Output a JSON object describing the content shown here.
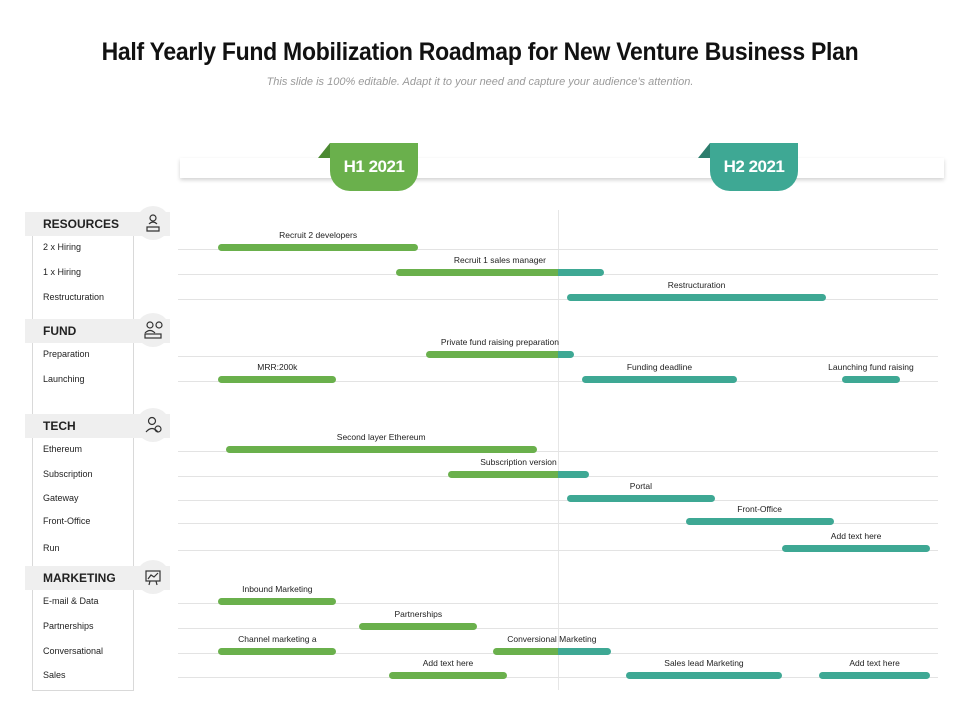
{
  "title": "Half Yearly Fund Mobilization Roadmap for New Venture Business Plan",
  "subtitle": "This slide is 100% editable. Adapt it to your need and capture your audience’s attention.",
  "periods": [
    {
      "label": "H1 2021",
      "color": "#6ab04c"
    },
    {
      "label": "H2 2021",
      "color": "#3ea894"
    }
  ],
  "colors": {
    "h1": "#6ab04c",
    "h2": "#3ea894"
  },
  "sections": [
    {
      "name": "RESOURCES",
      "icon": "presenter-icon",
      "rows": [
        "2 x Hiring",
        "1 x Hiring",
        "Restructuration"
      ]
    },
    {
      "name": "FUND",
      "icon": "investor-icon",
      "rows": [
        "Preparation",
        "Launching"
      ]
    },
    {
      "name": "TECH",
      "icon": "tech-user-icon",
      "rows": [
        "Ethereum",
        "Subscription",
        "Gateway",
        "Front-Office",
        "Run"
      ]
    },
    {
      "name": "MARKETING",
      "icon": "marketing-board-icon",
      "rows": [
        "E-mail & Data",
        "Partnerships",
        "Conversational",
        "Sales"
      ]
    }
  ],
  "tasks": [
    {
      "label": "Recruit 2 developers",
      "row": "2 x Hiring",
      "start": 0.03,
      "end": 0.31
    },
    {
      "label": "Recruit 1 sales manager",
      "row": "1 x Hiring",
      "start": 0.27,
      "end": 0.56
    },
    {
      "label": "Restructuration",
      "row": "Restructuration",
      "start": 0.5,
      "end": 0.86
    },
    {
      "label": "Private fund raising preparation",
      "row": "Preparation",
      "start": 0.31,
      "end": 0.52
    },
    {
      "label": "MRR:200k",
      "row": "Launching",
      "start": 0.03,
      "end": 0.2
    },
    {
      "label": "Funding  deadline",
      "row": "Launching",
      "start": 0.52,
      "end": 0.74
    },
    {
      "label": "Launching fund raising",
      "row": "Launching",
      "start": 0.87,
      "end": 0.96
    },
    {
      "label": "Second layer Ethereum",
      "row": "Ethereum",
      "start": 0.04,
      "end": 0.47
    },
    {
      "label": "Subscription version",
      "row": "Subscription",
      "start": 0.34,
      "end": 0.54
    },
    {
      "label": "Portal",
      "row": "Gateway",
      "start": 0.5,
      "end": 0.71
    },
    {
      "label": "Front-Office",
      "row": "Front-Office",
      "start": 0.66,
      "end": 0.87
    },
    {
      "label": "Add text here",
      "row": "Run",
      "start": 0.79,
      "end": 1.0
    },
    {
      "label": "Inbound Marketing",
      "row": "E-mail & Data",
      "start": 0.03,
      "end": 0.2
    },
    {
      "label": "Partnerships",
      "row": "Partnerships",
      "start": 0.22,
      "end": 0.39
    },
    {
      "label": "Channel marketing a",
      "row": "Conversational",
      "start": 0.03,
      "end": 0.2
    },
    {
      "label": "Conversional Marketing",
      "row": "Conversational",
      "start": 0.4,
      "end": 0.57
    },
    {
      "label": "Add text here",
      "row": "Sales",
      "start": 0.26,
      "end": 0.43
    },
    {
      "label": "Sales lead Marketing",
      "row": "Sales",
      "start": 0.58,
      "end": 0.8
    },
    {
      "label": "Add text here",
      "row": "Sales",
      "start": 0.84,
      "end": 1.0
    }
  ]
}
